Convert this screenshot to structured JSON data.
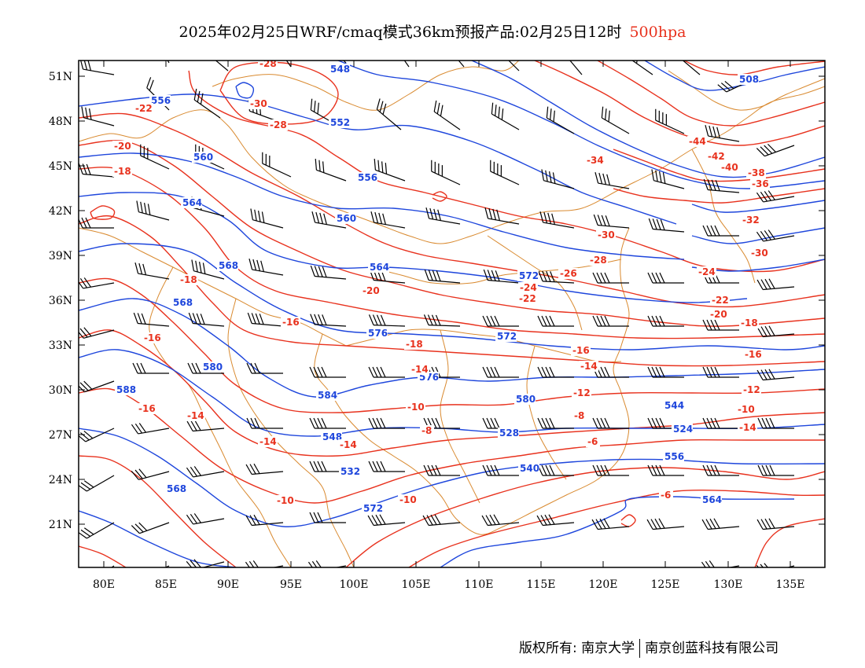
{
  "header": {
    "title": "2025年02月25日WRF/cmaq模式36km预报产品:02月25日12时",
    "level": "500hpa"
  },
  "axes": {
    "lat_ticks": [
      "51N",
      "48N",
      "45N",
      "42N",
      "39N",
      "36N",
      "33N",
      "30N",
      "27N",
      "24N",
      "21N"
    ],
    "lon_ticks": [
      "80E",
      "85E",
      "90E",
      "95E",
      "100E",
      "105E",
      "110E",
      "115E",
      "120E",
      "125E",
      "130E",
      "135E"
    ]
  },
  "colors": {
    "height_contour": "#1e46dc",
    "temperature_contour": "#e8321e",
    "boundary": "#d98a30",
    "wind_barb": "#000000"
  },
  "height_labels": [
    "548",
    "508",
    "556",
    "552",
    "560",
    "556",
    "564",
    "560",
    "568",
    "564",
    "572",
    "568",
    "576",
    "572",
    "580",
    "576",
    "584",
    "580",
    "588",
    "544",
    "548",
    "528",
    "524",
    "532",
    "540",
    "556",
    "564",
    "568",
    "572"
  ],
  "temp_labels": [
    "-28",
    "-30",
    "-28",
    "-22",
    "-20",
    "-18",
    "-34",
    "-44",
    "-42",
    "-40",
    "-38",
    "-36",
    "-32",
    "-30",
    "-30",
    "-28",
    "-26",
    "-24",
    "-24",
    "-22",
    "-22",
    "-20",
    "-20",
    "-18",
    "-18",
    "-16",
    "-16",
    "-14",
    "-14",
    "-12",
    "-12",
    "-10",
    "-10",
    "-8",
    "-8",
    "-6",
    "-14",
    "-16",
    "-18",
    "-16",
    "-14",
    "-14",
    "-16",
    "-14",
    "-10",
    "-10",
    "-6"
  ],
  "footer": {
    "left": "版权所有: 南京大学",
    "right": "南京创蓝科技有限公司"
  }
}
